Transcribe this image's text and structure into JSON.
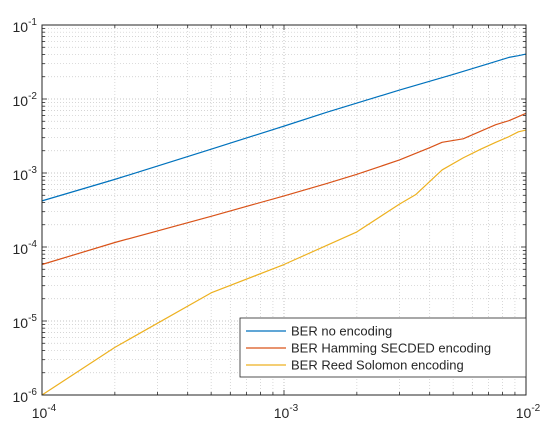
{
  "chart_data": {
    "type": "line",
    "title": "",
    "xlabel": "",
    "ylabel": "",
    "x_scale": "log",
    "y_scale": "log",
    "xlim": [
      0.0001,
      0.01
    ],
    "ylim": [
      1e-06,
      0.1
    ],
    "grid": true,
    "legend_position": "bottom-right",
    "x_ticks": [
      {
        "mantissa": "10",
        "exp": "-4"
      },
      {
        "mantissa": "10",
        "exp": "-3"
      },
      {
        "mantissa": "10",
        "exp": "-2"
      }
    ],
    "y_ticks": [
      {
        "mantissa": "10",
        "exp": "-6"
      },
      {
        "mantissa": "10",
        "exp": "-5"
      },
      {
        "mantissa": "10",
        "exp": "-4"
      },
      {
        "mantissa": "10",
        "exp": "-3"
      },
      {
        "mantissa": "10",
        "exp": "-2"
      },
      {
        "mantissa": "10",
        "exp": "-1"
      }
    ],
    "series": [
      {
        "name": "BER no encoding",
        "color": "#0072bd",
        "points": [
          [
            0.0001,
            0.00042
          ],
          [
            0.0002,
            0.00082
          ],
          [
            0.0005,
            0.0021
          ],
          [
            0.001,
            0.0043
          ],
          [
            0.0015,
            0.0066
          ],
          [
            0.002,
            0.0088
          ],
          [
            0.003,
            0.0132
          ],
          [
            0.005,
            0.0215
          ],
          [
            0.007,
            0.03
          ],
          [
            0.0085,
            0.0365
          ],
          [
            0.0093,
            0.0385
          ],
          [
            0.01,
            0.0405
          ]
        ]
      },
      {
        "name": "BER Hamming SECDED encoding",
        "color": "#d95319",
        "points": [
          [
            0.0001,
            5.8e-05
          ],
          [
            0.0002,
            0.000115
          ],
          [
            0.0005,
            0.00026
          ],
          [
            0.001,
            0.00049
          ],
          [
            0.0015,
            0.00072
          ],
          [
            0.002,
            0.00096
          ],
          [
            0.003,
            0.0015
          ],
          [
            0.004,
            0.0022
          ],
          [
            0.0045,
            0.0026
          ],
          [
            0.0055,
            0.0029
          ],
          [
            0.0075,
            0.0045
          ],
          [
            0.0085,
            0.0051
          ],
          [
            0.01,
            0.0064
          ]
        ]
      },
      {
        "name": "BER Reed Solomon encoding",
        "color": "#edb120",
        "points": [
          [
            0.0001,
            1e-06
          ],
          [
            0.0002,
            4.4e-06
          ],
          [
            0.0005,
            2.4e-05
          ],
          [
            0.001,
            5.8e-05
          ],
          [
            0.002,
            0.00016
          ],
          [
            0.003,
            0.00038
          ],
          [
            0.0035,
            0.00051
          ],
          [
            0.0045,
            0.0011
          ],
          [
            0.0055,
            0.0016
          ],
          [
            0.0065,
            0.0021
          ],
          [
            0.0075,
            0.0026
          ],
          [
            0.0085,
            0.0031
          ],
          [
            0.0093,
            0.0036
          ],
          [
            0.01,
            0.0038
          ]
        ]
      }
    ]
  }
}
